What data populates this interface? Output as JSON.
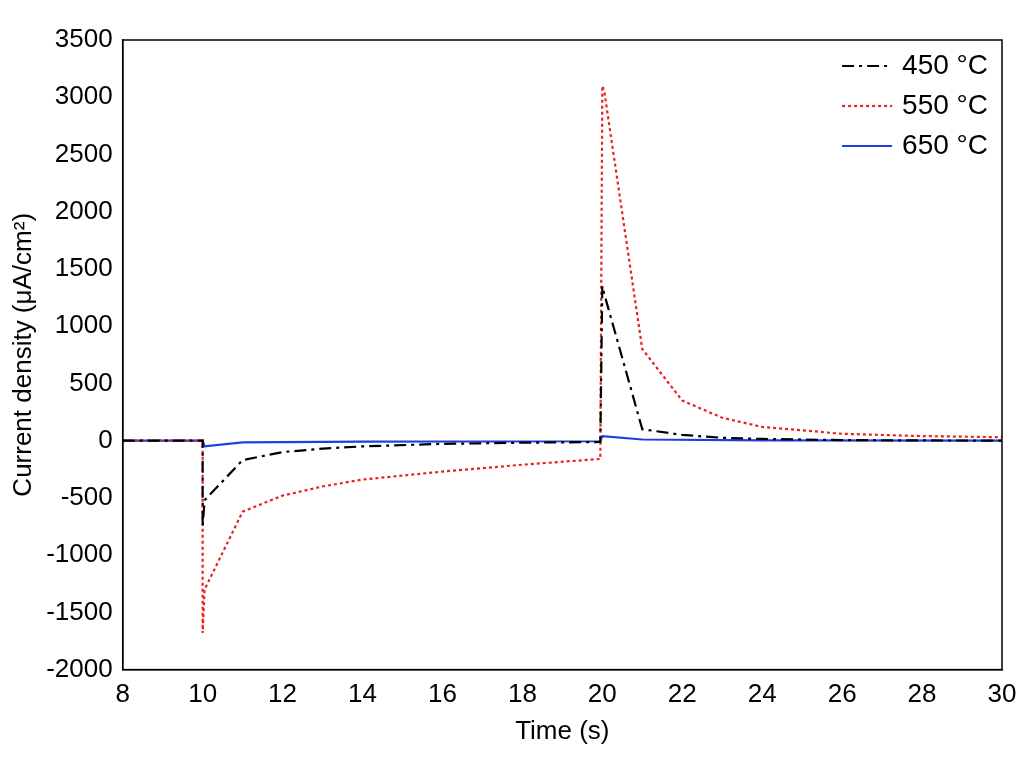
{
  "chart_data": {
    "type": "line",
    "x_label": "Time (s)",
    "y_label": "Current density (μA/cm²)",
    "xlim": [
      8,
      30
    ],
    "xticks": [
      8,
      10,
      12,
      14,
      16,
      18,
      20,
      22,
      24,
      26,
      28,
      30
    ],
    "ylim": [
      -2000,
      3500
    ],
    "yticks": [
      -2000,
      -1500,
      -1000,
      -500,
      0,
      500,
      1000,
      1500,
      2000,
      2500,
      3000,
      3500
    ],
    "grid": false,
    "legend": "upper right",
    "series": [
      {
        "name": "450 °C",
        "color": "#000000",
        "line_style": "dashdot",
        "x": [
          8,
          10,
          10,
          10.05,
          11,
          12,
          13,
          14,
          16,
          18,
          19.95,
          20,
          20.05,
          21,
          22,
          23,
          24,
          26,
          28,
          30
        ],
        "values": [
          0,
          0,
          -750,
          -520,
          -170,
          -100,
          -70,
          -50,
          -28,
          -18,
          -12,
          1350,
          1280,
          100,
          50,
          25,
          15,
          5,
          2,
          0
        ]
      },
      {
        "name": "550 °C",
        "color": "#e8201e",
        "line_style": "dotted",
        "x": [
          8,
          10,
          10,
          10.05,
          11,
          12,
          13,
          14,
          16,
          18,
          19.95,
          20,
          20.05,
          21,
          22,
          23,
          24,
          26,
          28,
          30
        ],
        "values": [
          0,
          0,
          -1680,
          -1300,
          -620,
          -480,
          -400,
          -340,
          -270,
          -210,
          -160,
          3100,
          3050,
          800,
          350,
          200,
          120,
          60,
          40,
          30
        ]
      },
      {
        "name": "650 °C",
        "color": "#1f3fe0",
        "line_style": "solid",
        "x": [
          8,
          10,
          10.05,
          11,
          14,
          19.95,
          20,
          21,
          24,
          30
        ],
        "values": [
          0,
          0,
          -50,
          -15,
          -8,
          -5,
          40,
          10,
          3,
          0
        ]
      }
    ]
  }
}
